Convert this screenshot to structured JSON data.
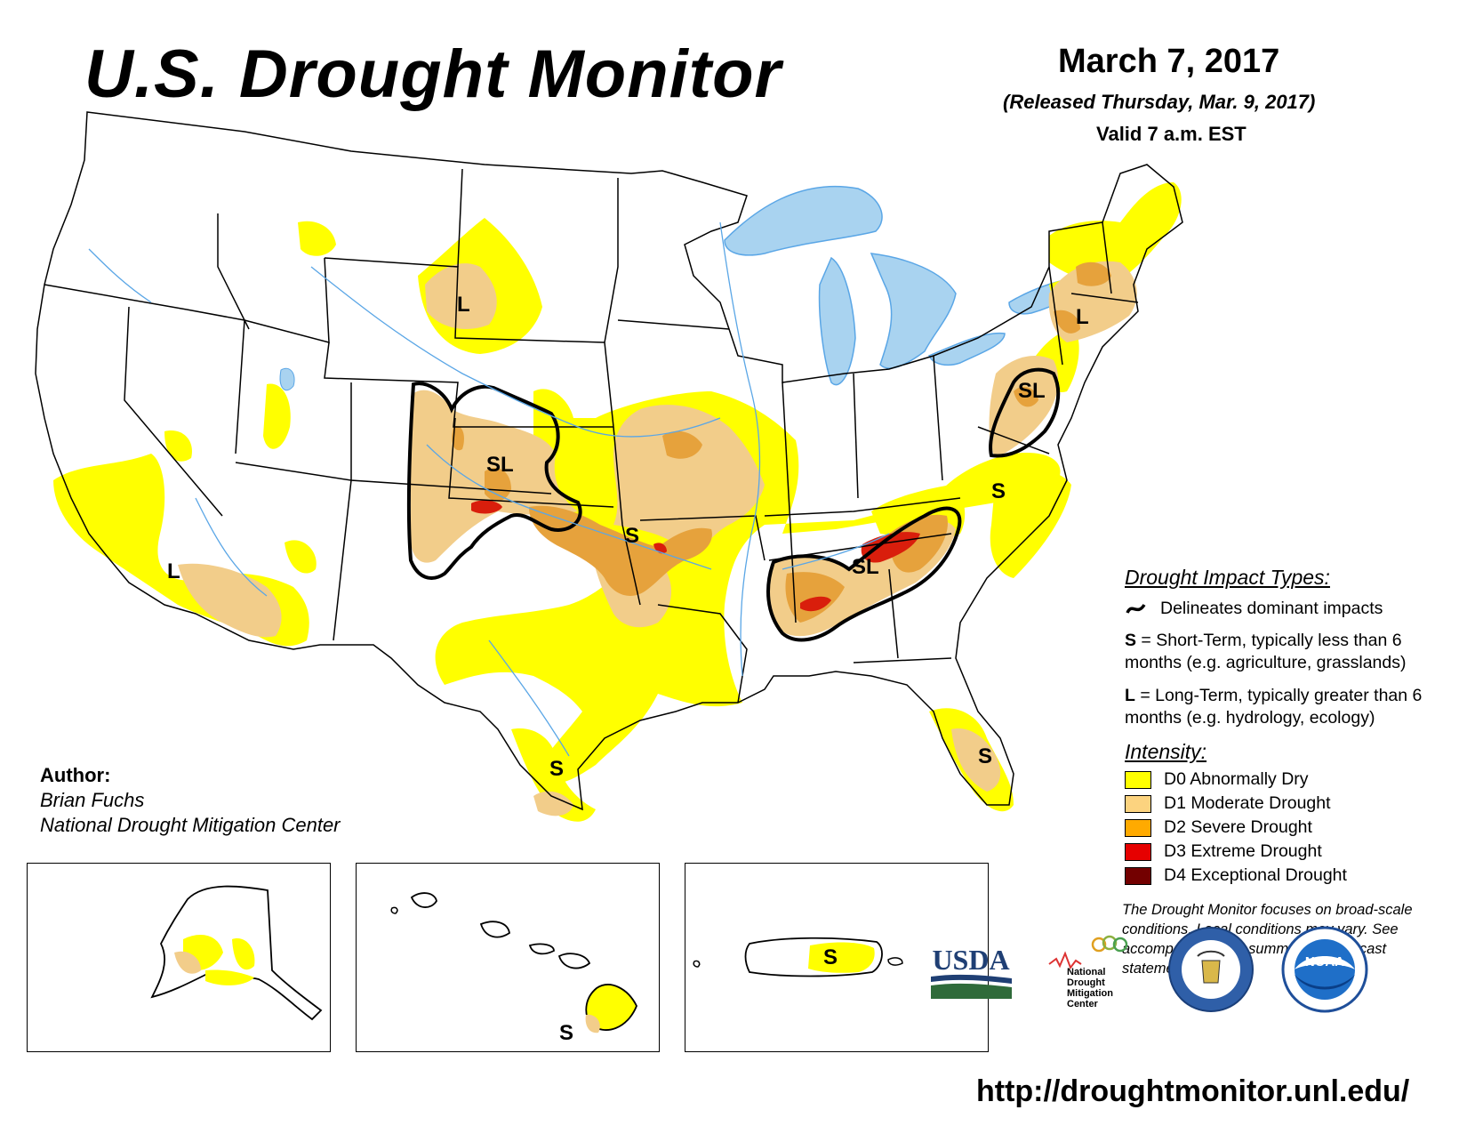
{
  "title": "U.S. Drought Monitor",
  "date": "March 7, 2017",
  "released": "(Released Thursday, Mar. 9, 2017)",
  "valid": "Valid 7 a.m. EST",
  "author": {
    "heading": "Author:",
    "name": "Brian Fuchs",
    "org": "National Drought Mitigation Center"
  },
  "impact_types": {
    "heading": "Drought Impact Types:",
    "delineates": "Delineates dominant impacts",
    "short_key": "S",
    "short_text": " = Short-Term, typically less than 6 months (e.g. agriculture, grasslands)",
    "long_key": "L",
    "long_text": " = Long-Term, typically greater than 6 months (e.g. hydrology, ecology)"
  },
  "intensity": {
    "heading": "Intensity:",
    "items": [
      {
        "label": "D0 Abnormally Dry",
        "color": "#ffff00"
      },
      {
        "label": "D1 Moderate Drought",
        "color": "#fcd37f"
      },
      {
        "label": "D2 Severe Drought",
        "color": "#ffaa00"
      },
      {
        "label": "D3 Extreme Drought",
        "color": "#e60000"
      },
      {
        "label": "D4 Exceptional Drought",
        "color": "#730000"
      }
    ]
  },
  "note": "The Drought Monitor focuses on broad-scale conditions. Local conditions may vary. See accompanying text summary for forecast statements.",
  "map_labels": {
    "l": "L",
    "sl": "SL",
    "s": "S"
  },
  "logos": {
    "usda": "USDA",
    "ndmc": [
      "National",
      "Drought",
      "Mitigation",
      "Center"
    ],
    "noaa": "NOAA"
  },
  "url": "http://droughtmonitor.unl.edu/",
  "colors": {
    "d0": "#ffff00",
    "d1": "#f2cd8a",
    "d2": "#e6a23c",
    "d3": "#d91e0c",
    "d4": "#730000",
    "water": "#a9d3f0",
    "rivers": "#5aa6e6"
  }
}
